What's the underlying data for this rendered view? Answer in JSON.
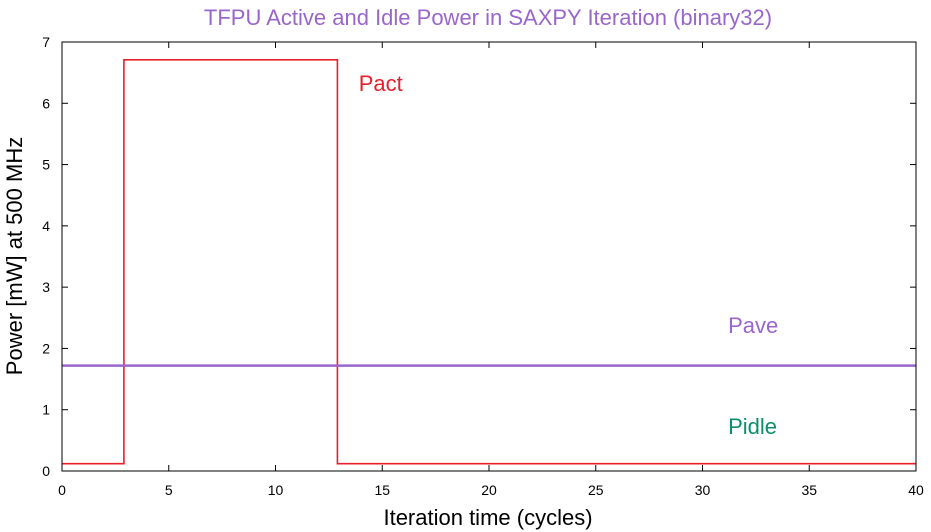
{
  "chart_data": {
    "type": "line",
    "title": "TFPU Active and Idle Power in SAXPY Iteration (binary32)",
    "xlabel": "Iteration time (cycles)",
    "ylabel": "Power [mW] at 500 MHz",
    "xlim": [
      0,
      40
    ],
    "ylim": [
      0,
      7
    ],
    "xticks": [
      0,
      5,
      10,
      15,
      20,
      25,
      30,
      35,
      40
    ],
    "yticks": [
      0,
      1,
      2,
      3,
      4,
      5,
      6,
      7
    ],
    "grid": false,
    "series": [
      {
        "name": "Pact",
        "color": "#e8202a",
        "x": [
          0,
          2.9,
          2.9,
          12.9,
          12.9,
          40
        ],
        "y": [
          0.12,
          0.12,
          6.71,
          6.71,
          0.12,
          0.12
        ]
      },
      {
        "name": "Pave",
        "color": "#9966cc",
        "x": [
          0,
          40
        ],
        "y": [
          1.72,
          1.72
        ]
      }
    ],
    "annotations": [
      {
        "text": "Pact",
        "x": 13.9,
        "y": 6.2,
        "color": "#e8202a"
      },
      {
        "text": "Pave",
        "x": 31.2,
        "y": 2.25,
        "color": "#9966cc"
      },
      {
        "text": "Pidle",
        "x": 31.2,
        "y": 0.6,
        "color": "#0a8f6a"
      }
    ],
    "title_color": "#9966cc"
  }
}
